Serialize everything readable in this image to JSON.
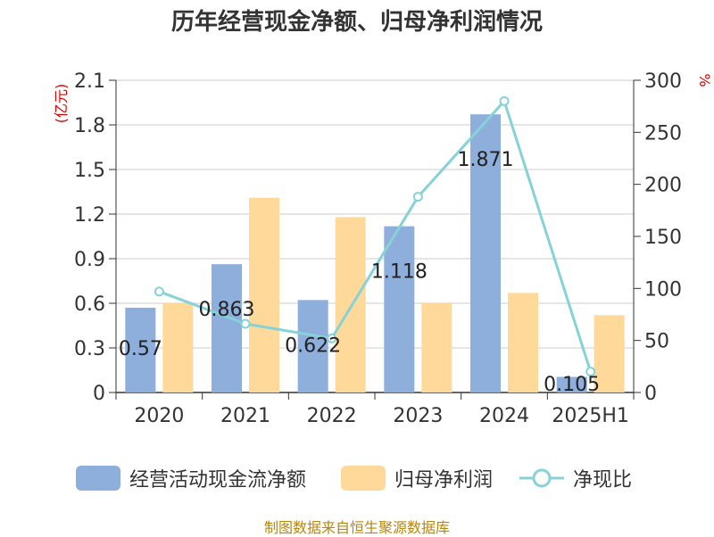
{
  "title": "历年经营现金净额、归母净利润情况",
  "source_text": "制图数据来自恒生聚源数据库",
  "colors": {
    "cashflow": "#8eaedc",
    "net_profit": "#ffd99a",
    "ratio": "#87d2d6",
    "left_unit": "#e00000",
    "right_unit": "#e00000"
  },
  "chart_data": {
    "type": "bar",
    "title": "历年经营现金净额、归母净利润情况",
    "categories": [
      "2020",
      "2021",
      "2022",
      "2023",
      "2024",
      "2025H1"
    ],
    "y_left_unit": "(亿元)",
    "y_right_unit": "%",
    "ylim_left": [
      0,
      2.1
    ],
    "yticks_left": [
      "0",
      "0.3",
      "0.6",
      "0.9",
      "1.2",
      "1.5",
      "1.8",
      "2.1"
    ],
    "ylim_right": [
      0,
      300
    ],
    "yticks_right": [
      "0",
      "50",
      "100",
      "150",
      "200",
      "250",
      "300"
    ],
    "grid": true,
    "legend_position": "bottom",
    "series": [
      {
        "name": "经营活动现金流净额",
        "type": "bar",
        "axis": "left",
        "values": [
          0.57,
          0.863,
          0.622,
          1.118,
          1.871,
          0.105
        ],
        "labels": [
          "0.57",
          "0.863",
          "0.622",
          "1.118",
          "1.871",
          "0.105"
        ]
      },
      {
        "name": "归母净利润",
        "type": "bar",
        "axis": "left",
        "values": [
          0.6,
          1.31,
          1.18,
          0.6,
          0.67,
          0.52
        ]
      },
      {
        "name": "净现比",
        "type": "line",
        "axis": "right",
        "values": [
          97,
          66,
          52,
          188,
          280,
          20
        ]
      }
    ]
  }
}
